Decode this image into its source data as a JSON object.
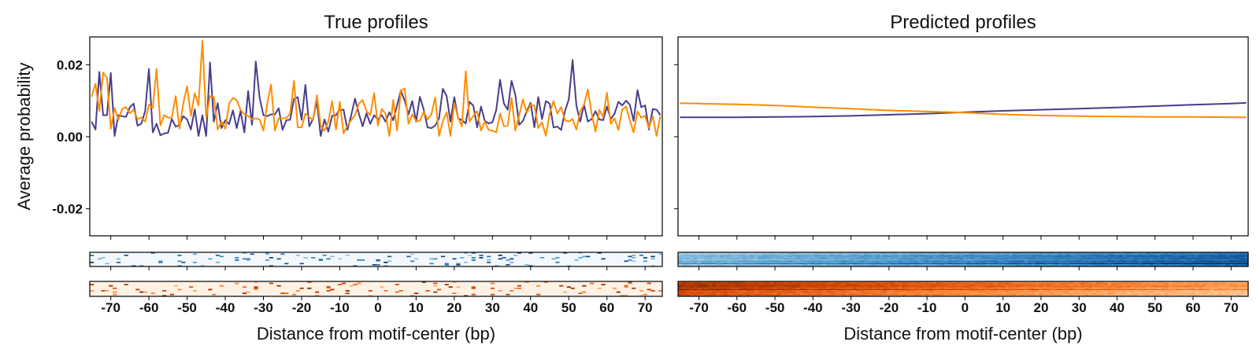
{
  "chart_data": [
    {
      "type": "line",
      "title": "True profiles",
      "xlabel": "Distance from motif-center (bp)",
      "ylabel": "Average probability",
      "xlim": [
        -75.5,
        74.5
      ],
      "ylim": [
        -0.0275,
        0.0277
      ],
      "x_start": -75,
      "x_step": 1,
      "xticks": [
        -70,
        -60,
        -50,
        -40,
        -30,
        -20,
        -10,
        0,
        10,
        20,
        30,
        40,
        50,
        60,
        70
      ],
      "xtick_labels": [
        "-70",
        "-60",
        "-50",
        "-40",
        "-30",
        "-20",
        "-10",
        "0",
        "10",
        "20",
        "30",
        "40",
        "50",
        "60",
        "70"
      ],
      "yticks": [
        0.02,
        0.0,
        -0.02
      ],
      "ytick_labels": [
        "0.02",
        "0.00",
        "-0.02"
      ],
      "grid": false,
      "series": [
        {
          "color": "#483d8b",
          "values": [
            0.0042,
            0.002,
            0.018,
            0.006,
            0.006,
            0.0177,
            0.0002,
            0.006,
            0.0057,
            0.0055,
            0.0082,
            0.0092,
            0.0031,
            0.0036,
            0.0071,
            0.0188,
            0.0012,
            0.0036,
            0.0004,
            0.0009,
            0.0011,
            0.0049,
            0.0028,
            0.0033,
            0.0057,
            0.0048,
            0.002,
            0.0076,
            0.0002,
            0.006,
            0.0002,
            0.0206,
            0.0042,
            0.0093,
            0.0024,
            0.0046,
            0.0035,
            0.0073,
            0.0024,
            0.0071,
            0.0012,
            0.0127,
            0.0033,
            0.0209,
            0.0108,
            0.006,
            0.0057,
            0.0062,
            0.0062,
            0.0079,
            0.0019,
            0.0046,
            0.0047,
            0.0105,
            0.011,
            0.0047,
            0.0144,
            0.0029,
            0.0049,
            0.01,
            0.0002,
            0.0048,
            0.0014,
            0.0058,
            0.006,
            0.0075,
            0.0075,
            0.0019,
            0.006,
            0.0106,
            0.0064,
            0.0029,
            0.0065,
            0.0036,
            0.006,
            0.0048,
            0.006,
            0.0042,
            0.0068,
            0.0046,
            0.0086,
            0.0128,
            0.01,
            0.0062,
            0.0099,
            0.0042,
            0.0111,
            0.0075,
            0.0026,
            0.0024,
            0.0031,
            0.0051,
            0.0133,
            0.0113,
            0.0042,
            0.011,
            0.0051,
            0.0046,
            0.0037,
            0.0097,
            0.0086,
            0.0026,
            0.0084,
            0.0044,
            0.0037,
            0.004,
            0.0075,
            0.0158,
            0.0092,
            0.0075,
            0.0155,
            0.0116,
            0.0033,
            0.0044,
            0.0071,
            0.0094,
            0.0026,
            0.011,
            0.0049,
            0.0099,
            0.0092,
            0.0026,
            0.0028,
            0.0019,
            0.0071,
            0.0104,
            0.0213,
            0.0087,
            0.0042,
            0.0089,
            0.0042,
            0.0049,
            0.0071,
            0.0048,
            0.0046,
            0.0084,
            0.0049,
            0.0064,
            0.0097,
            0.0087,
            0.01,
            0.0089,
            0.0044,
            0.0129,
            0.0082,
            0.0087,
            0.002,
            0.0077,
            0.0075,
            0.006
          ]
        },
        {
          "color": "#ff8c00",
          "values": [
            0.0111,
            0.0147,
            0.0071,
            0.0178,
            0.0164,
            0.0022,
            0.008,
            0.0048,
            0.0077,
            0.0082,
            0.0065,
            0.0075,
            0.0049,
            0.0053,
            0.0042,
            0.0089,
            0.008,
            0.0188,
            0.0031,
            0.006,
            0.0053,
            0.0053,
            0.0113,
            0.0022,
            0.0092,
            0.014,
            0.0058,
            0.0121,
            0.0087,
            0.0266,
            0.0053,
            0.0113,
            0.0111,
            0.002,
            0.0042,
            0.0022,
            0.0092,
            0.0108,
            0.0102,
            0.0075,
            0.0062,
            0.0058,
            0.0048,
            0.0051,
            0.0048,
            0.0017,
            0.0093,
            0.0145,
            0.0017,
            0.0051,
            0.0051,
            0.0052,
            0.0064,
            0.0155,
            0.0026,
            0.0026,
            0.0064,
            0.0055,
            0.0046,
            0.0115,
            0.0031,
            0.0017,
            0.0042,
            0.0099,
            0.002,
            0.0097,
            0.0009,
            0.0031,
            0.0046,
            0.006,
            0.0092,
            0.0102,
            0.0071,
            0.006,
            0.0121,
            0.0031,
            0.0077,
            0.0064,
            0.0002,
            0.0102,
            0.0017,
            0.0129,
            0.0133,
            0.0036,
            0.0062,
            0.0044,
            0.0044,
            0.007,
            0.0048,
            0.0062,
            0.0109,
            0.0002,
            0.0042,
            0.0068,
            0.0002,
            0.0093,
            0.0053,
            0.0029,
            0.0182,
            0.0042,
            0.0058,
            0.0071,
            0.0017,
            0.0042,
            0.0019,
            0.0017,
            0.0012,
            0.0064,
            0.0029,
            0.0031,
            0.0108,
            0.0017,
            0.006,
            0.0104,
            0.0066,
            0.0089,
            0.0086,
            0.0024,
            0.004,
            0.0002,
            0.0064,
            0.0099,
            0.0064,
            0.0082,
            0.0046,
            0.0042,
            0.0049,
            0.002,
            0.007,
            0.0089,
            0.0131,
            0.0064,
            0.0014,
            0.0075,
            0.0055,
            0.0122,
            0.0036,
            0.0051,
            0.0019,
            0.0075,
            0.0084,
            0.0046,
            0.0012,
            0.007,
            0.0053,
            0.0058,
            0.0024,
            0.0057,
            0.0002,
            0.0057
          ]
        }
      ],
      "heatmaps": [
        {
          "colormap": "Blues",
          "pattern": "sparse"
        },
        {
          "colormap": "Oranges",
          "pattern": "sparse"
        }
      ]
    },
    {
      "type": "line",
      "title": "Predicted profiles",
      "xlabel": "Distance from motif-center (bp)",
      "xlim": [
        -75.5,
        74.5
      ],
      "ylim": [
        -0.0275,
        0.0277
      ],
      "xticks": [
        -70,
        -60,
        -50,
        -40,
        -30,
        -20,
        -10,
        0,
        10,
        20,
        30,
        40,
        50,
        60,
        70
      ],
      "xtick_labels": [
        "-70",
        "-60",
        "-50",
        "-40",
        "-30",
        "-20",
        "-10",
        "0",
        "10",
        "20",
        "30",
        "40",
        "50",
        "60",
        "70"
      ],
      "yticks": [
        0.02,
        0.0,
        -0.02
      ],
      "grid": false,
      "x": [
        -75,
        -70,
        -60,
        -50,
        -40,
        -30,
        -20,
        -10,
        0,
        10,
        20,
        30,
        40,
        50,
        60,
        70,
        74
      ],
      "series": [
        {
          "color": "#483d8b",
          "values": [
            0.0054,
            0.0054,
            0.0054,
            0.0055,
            0.0056,
            0.0058,
            0.0061,
            0.0064,
            0.0068,
            0.0072,
            0.0075,
            0.0078,
            0.0081,
            0.0085,
            0.0089,
            0.0092,
            0.0094
          ]
        },
        {
          "color": "#ff8c00",
          "values": [
            0.0093,
            0.0092,
            0.009,
            0.0087,
            0.0082,
            0.0078,
            0.0073,
            0.007,
            0.0067,
            0.0062,
            0.0059,
            0.0057,
            0.0056,
            0.0055,
            0.0055,
            0.0054,
            0.0054
          ]
        }
      ],
      "heatmaps": [
        {
          "colormap": "Blues",
          "pattern": "dense, darkening to the right"
        },
        {
          "colormap": "Oranges",
          "pattern": "dense, lightening to the right"
        }
      ]
    }
  ]
}
